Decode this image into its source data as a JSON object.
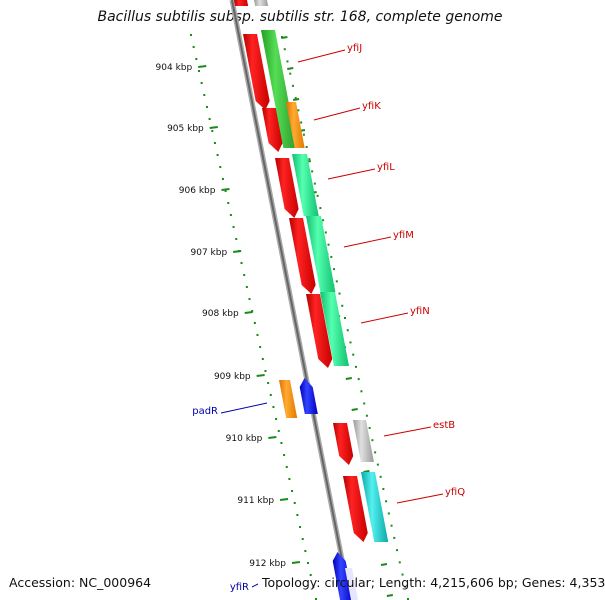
{
  "title": "Bacillus subtilis subsp. subtilis str. 168, complete genome",
  "footer": {
    "accession": "Accession: NC_000964",
    "topology": "Topology: circular; Length: 4,215,606 bp; Genes: 4,353"
  },
  "colors": {
    "reading_frame_arrow": "#ee1111",
    "gene_labels_forward": "#cc0000",
    "gene_labels_reverse": "#0000aa",
    "backbone": "#888888",
    "scale_ticks": "#1a8a1a"
  },
  "scale_labels": [
    "904 kbp",
    "905 kbp",
    "906 kbp",
    "907 kbp",
    "908 kbp",
    "909 kbp",
    "910 kbp",
    "911 kbp",
    "912 kbp"
  ],
  "genes": [
    {
      "name": "yfiJ",
      "strand": "+",
      "color": "#33bb33"
    },
    {
      "name": "yfiK",
      "strand": "+",
      "color": "#ff8800"
    },
    {
      "name": "yfiL",
      "strand": "+",
      "color": "#11e088"
    },
    {
      "name": "yfiM",
      "strand": "+",
      "color": "#11e088"
    },
    {
      "name": "yfiN",
      "strand": "+",
      "color": "#11e088"
    },
    {
      "name": "padR",
      "strand": "-",
      "color": "#ff8800"
    },
    {
      "name": "estB",
      "strand": "+",
      "color": "#aaaaaa"
    },
    {
      "name": "yfiQ",
      "strand": "+",
      "color": "#11cccc"
    },
    {
      "name": "yfiR",
      "strand": "-",
      "color": "#0000ee"
    }
  ]
}
